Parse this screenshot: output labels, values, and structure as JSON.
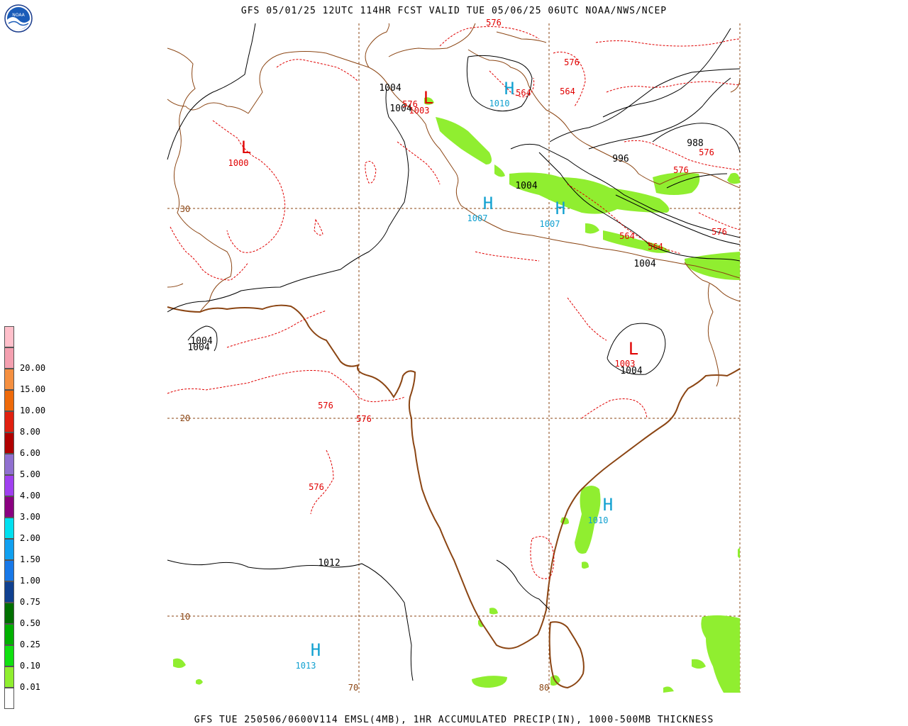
{
  "header": {
    "title": "GFS 05/01/25 12UTC 114HR FCST VALID TUE 05/06/25 06UTC NOAA/NWS/NCEP"
  },
  "footer": {
    "text": "GFS TUE 250506/0600V114 EMSL(4MB), 1HR ACCUMULATED PRECIP(IN), 1000-500MB THICKNESS"
  },
  "logo": {
    "text": "NOAA",
    "icon": "noaa-logo"
  },
  "legend": {
    "items": [
      {
        "label": "",
        "color": "#ffc0cb"
      },
      {
        "label": "20.00",
        "color": "#f4a0b0"
      },
      {
        "label": "15.00",
        "color": "#f59040"
      },
      {
        "label": "10.00",
        "color": "#ee6a0a"
      },
      {
        "label": "8.00",
        "color": "#e02010"
      },
      {
        "label": "6.00",
        "color": "#b00000"
      },
      {
        "label": "5.00",
        "color": "#9070d0"
      },
      {
        "label": "4.00",
        "color": "#a040f0"
      },
      {
        "label": "3.00",
        "color": "#8a0080"
      },
      {
        "label": "2.00",
        "color": "#00e0f0"
      },
      {
        "label": "1.50",
        "color": "#10a0f0"
      },
      {
        "label": "1.00",
        "color": "#1878e8"
      },
      {
        "label": "0.75",
        "color": "#104090"
      },
      {
        "label": "0.50",
        "color": "#007000"
      },
      {
        "label": "0.25",
        "color": "#00b000"
      },
      {
        "label": "0.10",
        "color": "#10e010"
      },
      {
        "label": "0.01",
        "color": "#90ee30"
      },
      {
        "label": "",
        "color": "#ffffff"
      }
    ]
  },
  "grid": {
    "lat_labels": [
      "30",
      "20",
      "10"
    ],
    "lon_labels": [
      "70",
      "80"
    ]
  },
  "pressure_centers": [
    {
      "letter": "L",
      "value": "1000",
      "type": "low"
    },
    {
      "letter": "L",
      "value": "1003",
      "type": "low"
    },
    {
      "letter": "L",
      "value": "1003",
      "type": "low"
    },
    {
      "letter": "H",
      "value": "1010",
      "type": "high"
    },
    {
      "letter": "H",
      "value": "1007",
      "type": "high"
    },
    {
      "letter": "H",
      "value": "1007",
      "type": "high"
    },
    {
      "letter": "H",
      "value": "1010",
      "type": "high"
    },
    {
      "letter": "H",
      "value": "1013",
      "type": "high"
    }
  ],
  "isobar_labels": [
    "1004",
    "1004",
    "996",
    "988",
    "1004",
    "1004",
    "1004",
    "1004",
    "1004",
    "1012"
  ],
  "thickness_labels": [
    "576",
    "576",
    "564",
    "564",
    "576",
    "576",
    "576",
    "564",
    "564",
    "576",
    "576",
    "576",
    "576"
  ],
  "colors": {
    "isobar": "#000000",
    "thickness": "#e00000",
    "border": "#8b4513",
    "coast": "#8b4513",
    "grid": "#8b4513",
    "high": "#10a0d0",
    "low": "#e00000",
    "precip": "#90ee30"
  }
}
